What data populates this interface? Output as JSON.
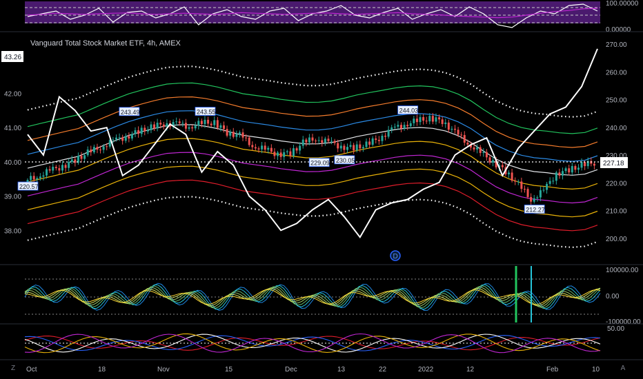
{
  "header": {
    "title": "Vanguard Total Stock Market ETF, 4h, AMEX"
  },
  "colors": {
    "background": "#000000",
    "pane_divider": "#2a2e39",
    "up": "#26a69a",
    "down": "#ef5350",
    "price_line": "#ffffff",
    "band_green": "#22c55e",
    "band_orange": "#f57c2c",
    "band_blue": "#2b8ae5",
    "band_magenta": "#c026d3",
    "band_yellow": "#eab308",
    "band_red": "#e11d2b",
    "rsi_fill": "#4a1a6e"
  },
  "badges": {
    "d_marker": "D",
    "left_corner": "Z",
    "right_corner": "A"
  },
  "chart_data": [
    {
      "type": "line",
      "pane": "oscillator-top",
      "ylim": [
        0,
        100
      ],
      "right_ticks": [
        "100.00000",
        "0.00000"
      ],
      "series": [
        {
          "values": [
            50,
            60,
            70,
            40,
            55,
            80,
            30,
            65,
            70,
            45,
            60,
            85,
            20,
            60,
            75,
            50,
            40,
            70,
            80,
            35,
            60,
            70,
            90,
            55,
            45,
            65,
            80,
            40,
            60,
            75,
            50,
            85,
            60,
            20,
            10,
            45,
            70,
            60,
            90,
            95,
            70
          ]
        },
        {
          "values": [
            55,
            58,
            62,
            60,
            58,
            60,
            62,
            63,
            60,
            58,
            60,
            62,
            60,
            58,
            60,
            64,
            62,
            60,
            58,
            60,
            62,
            63,
            60,
            58,
            60,
            62,
            64,
            60,
            58,
            56,
            52,
            50,
            48,
            46,
            48,
            55,
            62,
            68,
            72,
            78,
            80
          ]
        }
      ]
    },
    {
      "type": "candlestick",
      "pane": "main",
      "left_axis_ticks": [
        "43.00",
        "42.00",
        "41.00",
        "40.00",
        "39.00",
        "38.00"
      ],
      "left_axis_tag": "43.26",
      "left_ylim": [
        37.2,
        43.6
      ],
      "right_axis_ticks": [
        "270.00",
        "260.00",
        "250.00",
        "240.00",
        "230.00",
        "220.00",
        "210.00",
        "200.00"
      ],
      "right_axis_tag": "227.18",
      "right_ylim": [
        193,
        272
      ],
      "x_ticks": [
        "Oct",
        "18",
        "Nov",
        "15",
        "Dec",
        "13",
        "22",
        "2022",
        "12",
        "Feb",
        "10"
      ],
      "annotations": [
        "243.49",
        "243.55",
        "244.03",
        "220.57",
        "229.09",
        "230.05",
        "212.27"
      ],
      "price_close": [
        220.6,
        222.3,
        224.4,
        225.9,
        228.2,
        230.9,
        232.8,
        235.2,
        236.6,
        238.4,
        240.0,
        241.3,
        241.4,
        240.2,
        241.6,
        241.7,
        238.1,
        237.2,
        233.4,
        232.0,
        230.3,
        230.7,
        234.5,
        236.0,
        234.7,
        233.1,
        232.5,
        233.8,
        236.1,
        239.3,
        241.0,
        242.4,
        243.2,
        242.3,
        238.2,
        234.3,
        230.9,
        227.5,
        224.1,
        219.4,
        214.0,
        217.2,
        223.4,
        224.6,
        226.4,
        227.2
      ],
      "series": [
        {
          "name_hidden": true,
          "values": [
            40.8,
            40.2,
            41.9,
            41.5,
            40.9,
            41.0,
            39.6,
            39.9,
            40.5,
            41.1,
            40.8,
            39.7,
            40.3,
            39.9,
            39.0,
            38.6,
            38.0,
            38.2,
            38.6,
            38.9,
            38.4,
            37.8,
            38.6,
            38.8,
            38.9,
            39.2,
            39.4,
            40.2,
            40.5,
            40.7,
            39.6,
            40.4,
            40.9,
            41.4,
            41.6,
            42.2,
            43.3
          ]
        }
      ]
    },
    {
      "type": "line",
      "pane": "oscillator-mid",
      "ylim": [
        -110000,
        110000
      ],
      "right_ticks": [
        "100000.00",
        "0.00",
        "-100000.00"
      ]
    },
    {
      "type": "line",
      "pane": "oscillator-bottom",
      "right_ticks": [
        "50.00"
      ]
    }
  ]
}
